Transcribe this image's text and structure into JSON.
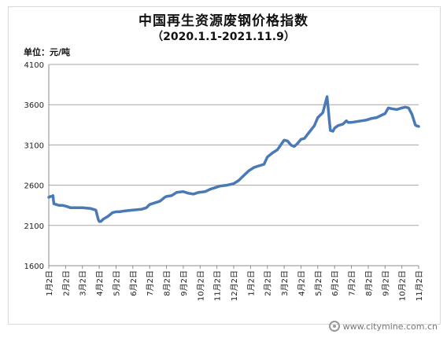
{
  "chart_data": {
    "type": "line",
    "title": "中国再生资源废钢价格指数",
    "subtitle": "（2020.1.1-2021.11.9）",
    "ylabel": "单位：元/吨",
    "xlabel": "",
    "ylim": [
      1600,
      4100
    ],
    "yticks": [
      1600,
      2100,
      2600,
      3100,
      3600,
      4100
    ],
    "grid": "horizontal",
    "legend": "none",
    "line_color": "#4a7ab5",
    "categories": [
      "1月2日",
      "2月2日",
      "3月2日",
      "4月2日",
      "5月2日",
      "6月2日",
      "7月2日",
      "8月2日",
      "9月2日",
      "10月2日",
      "11月2日",
      "12月2日",
      "1月2日",
      "2月2日",
      "3月2日",
      "4月2日",
      "5月2日",
      "6月2日",
      "7月2日",
      "8月2日",
      "9月2日",
      "10月2日",
      "11月2日"
    ],
    "series": [
      {
        "x": [
          0,
          0.1,
          0.2,
          0.25,
          0.3,
          0.6,
          0.8,
          1.0,
          1.3,
          2.0,
          2.5,
          2.8,
          2.95,
          3.0,
          3.05,
          3.1,
          3.25,
          3.5,
          3.8,
          4.0,
          4.2,
          4.5,
          5.0,
          5.5,
          5.8,
          6.0,
          6.3,
          6.6,
          6.9,
          7.0,
          7.3,
          7.6,
          8.0,
          8.3,
          8.6,
          8.9,
          9.3,
          9.6,
          9.9,
          10.2,
          10.6,
          11.0,
          11.3,
          11.6,
          11.9,
          12.2,
          12.5,
          12.8,
          13.0,
          13.3,
          13.6,
          14.0,
          14.2,
          14.4,
          14.6,
          14.8,
          15.0,
          15.2,
          15.5,
          15.8,
          16.0,
          16.3,
          16.55,
          16.62,
          16.68,
          16.75,
          16.9,
          17.0,
          17.2,
          17.5,
          17.7,
          17.8,
          18.0,
          18.3,
          18.6,
          18.9,
          19.2,
          19.5,
          19.8,
          20.0,
          20.2,
          20.4,
          20.7,
          21.0,
          21.2,
          21.4,
          21.6,
          21.8,
          21.85,
          22.0
        ],
        "y": [
          2450,
          2460,
          2460,
          2470,
          2370,
          2350,
          2350,
          2340,
          2320,
          2320,
          2310,
          2290,
          2170,
          2150,
          2150,
          2150,
          2180,
          2210,
          2260,
          2270,
          2270,
          2280,
          2290,
          2300,
          2320,
          2360,
          2380,
          2400,
          2450,
          2460,
          2470,
          2510,
          2520,
          2500,
          2490,
          2510,
          2520,
          2550,
          2570,
          2590,
          2600,
          2620,
          2660,
          2720,
          2780,
          2820,
          2840,
          2860,
          2950,
          3000,
          3040,
          3160,
          3150,
          3100,
          3080,
          3120,
          3170,
          3180,
          3260,
          3340,
          3440,
          3500,
          3700,
          3550,
          3420,
          3280,
          3270,
          3310,
          3340,
          3360,
          3400,
          3380,
          3380,
          3390,
          3400,
          3410,
          3430,
          3440,
          3470,
          3490,
          3560,
          3550,
          3540,
          3560,
          3570,
          3560,
          3480,
          3350,
          3340,
          3330
        ]
      }
    ]
  },
  "watermark": {
    "text": "www.citymine.com.cn",
    "icon": "citymine-logo-icon"
  }
}
